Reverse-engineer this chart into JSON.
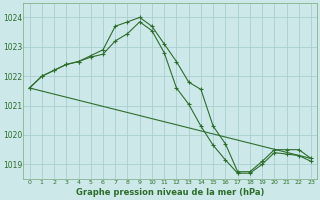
{
  "title": "Graphe pression niveau de la mer (hPa)",
  "background_color": "#cce8e8",
  "grid_color": "#aacece",
  "line_color": "#2d6e2d",
  "marker_color": "#2d6e2d",
  "ylim": [
    1018.5,
    1024.5
  ],
  "yticks": [
    1019,
    1020,
    1021,
    1022,
    1023,
    1024
  ],
  "xticks": [
    0,
    1,
    2,
    3,
    4,
    5,
    6,
    7,
    8,
    9,
    10,
    11,
    12,
    13,
    14,
    15,
    16,
    17,
    18,
    19,
    20,
    21,
    22,
    23
  ],
  "series": [
    {
      "x": [
        0,
        1,
        2,
        3,
        4,
        5,
        6,
        7,
        8,
        9,
        10,
        11,
        12,
        13,
        14,
        15,
        16,
        17,
        18,
        19,
        20,
        21,
        22,
        23
      ],
      "y": [
        1021.6,
        1022.0,
        1022.2,
        1022.4,
        1022.5,
        1022.7,
        1022.9,
        1023.7,
        1023.85,
        1024.0,
        1023.7,
        1023.1,
        1022.5,
        1021.8,
        1021.55,
        1020.3,
        1019.7,
        1018.75,
        1018.75,
        1019.1,
        1019.5,
        1019.5,
        1019.5,
        1019.2
      ]
    },
    {
      "x": [
        0,
        1,
        2,
        3,
        4,
        5,
        6,
        7,
        8,
        9,
        10,
        11,
        12,
        13,
        14,
        15,
        16,
        17,
        18,
        19,
        20,
        21,
        22,
        23
      ],
      "y": [
        1021.6,
        1022.0,
        1022.2,
        1022.4,
        1022.5,
        1022.65,
        1022.75,
        1023.2,
        1023.45,
        1023.85,
        1023.55,
        1022.8,
        1021.6,
        1021.05,
        1020.3,
        1019.65,
        1019.15,
        1018.7,
        1018.7,
        1019.0,
        1019.4,
        1019.35,
        1019.3,
        1019.1
      ]
    },
    {
      "x": [
        0,
        23
      ],
      "y": [
        1021.6,
        1019.2
      ]
    }
  ]
}
